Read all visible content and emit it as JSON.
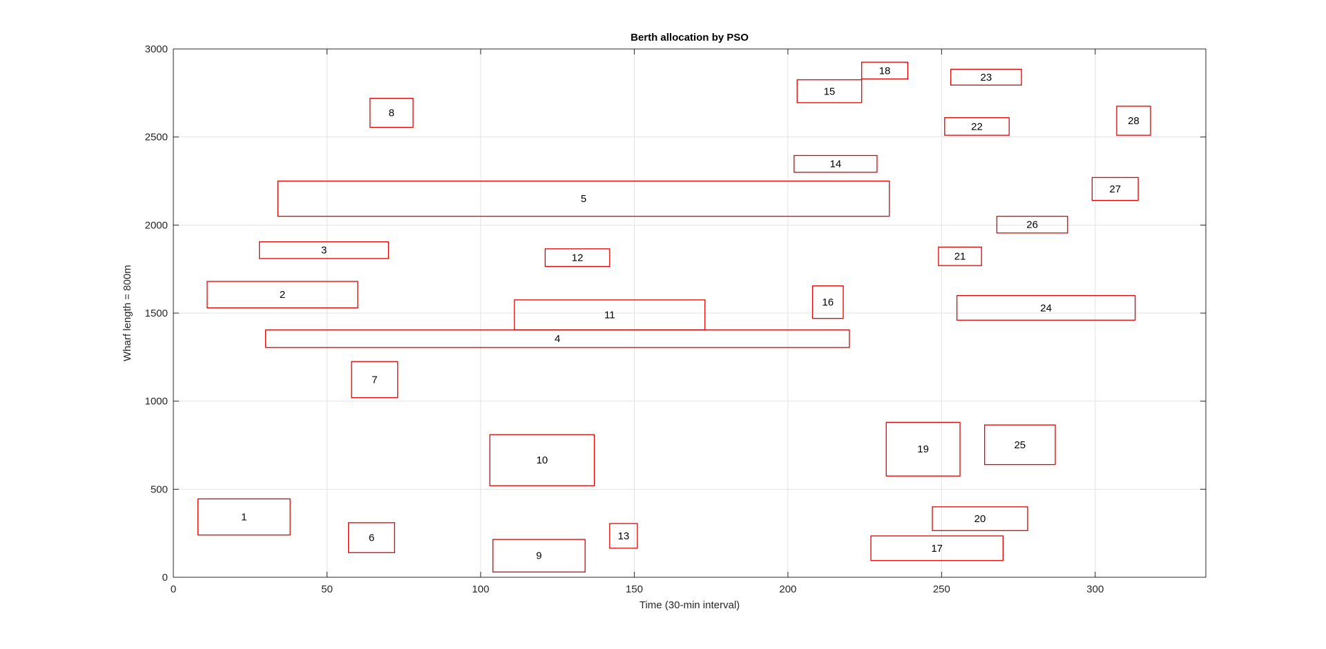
{
  "chart_data": {
    "type": "rectangle-chart",
    "title": "Berth allocation by PSO",
    "xlabel": "Time (30-min interval)",
    "ylabel": "Wharf length = 800m",
    "xlim": [
      0,
      336
    ],
    "ylim": [
      0,
      3000
    ],
    "xticks": [
      0,
      50,
      100,
      150,
      200,
      250,
      300
    ],
    "yticks": [
      0,
      500,
      1000,
      1500,
      2000,
      2500,
      3000
    ],
    "grid": true,
    "edge_color": "#e00000",
    "vessels": [
      {
        "id": "1",
        "x0": 8,
        "x1": 38,
        "y0": 240,
        "y1": 445
      },
      {
        "id": "2",
        "x0": 11,
        "x1": 60,
        "y0": 1530,
        "y1": 1680
      },
      {
        "id": "3",
        "x0": 28,
        "x1": 70,
        "y0": 1810,
        "y1": 1905
      },
      {
        "id": "4",
        "x0": 30,
        "x1": 220,
        "y0": 1305,
        "y1": 1405
      },
      {
        "id": "5",
        "x0": 34,
        "x1": 233,
        "y0": 2050,
        "y1": 2250
      },
      {
        "id": "6",
        "x0": 57,
        "x1": 72,
        "y0": 140,
        "y1": 310
      },
      {
        "id": "7",
        "x0": 58,
        "x1": 73,
        "y0": 1020,
        "y1": 1225
      },
      {
        "id": "8",
        "x0": 64,
        "x1": 78,
        "y0": 2555,
        "y1": 2720
      },
      {
        "id": "9",
        "x0": 104,
        "x1": 134,
        "y0": 30,
        "y1": 215
      },
      {
        "id": "10",
        "x0": 103,
        "x1": 137,
        "y0": 520,
        "y1": 810
      },
      {
        "id": "11",
        "x0": 111,
        "x1": 173,
        "y0": 1405,
        "y1": 1575
      },
      {
        "id": "12",
        "x0": 121,
        "x1": 142,
        "y0": 1765,
        "y1": 1865
      },
      {
        "id": "13",
        "x0": 142,
        "x1": 151,
        "y0": 165,
        "y1": 305
      },
      {
        "id": "14",
        "x0": 202,
        "x1": 229,
        "y0": 2300,
        "y1": 2395
      },
      {
        "id": "15",
        "x0": 203,
        "x1": 224,
        "y0": 2695,
        "y1": 2825
      },
      {
        "id": "16",
        "x0": 208,
        "x1": 218,
        "y0": 1470,
        "y1": 1655
      },
      {
        "id": "17",
        "x0": 227,
        "x1": 270,
        "y0": 95,
        "y1": 235
      },
      {
        "id": "18",
        "x0": 224,
        "x1": 239,
        "y0": 2830,
        "y1": 2925
      },
      {
        "id": "19",
        "x0": 232,
        "x1": 256,
        "y0": 575,
        "y1": 880
      },
      {
        "id": "20",
        "x0": 247,
        "x1": 278,
        "y0": 265,
        "y1": 400
      },
      {
        "id": "21",
        "x0": 249,
        "x1": 263,
        "y0": 1770,
        "y1": 1875
      },
      {
        "id": "22",
        "x0": 251,
        "x1": 272,
        "y0": 2510,
        "y1": 2610
      },
      {
        "id": "23",
        "x0": 253,
        "x1": 276,
        "y0": 2795,
        "y1": 2885
      },
      {
        "id": "24",
        "x0": 255,
        "x1": 313,
        "y0": 1460,
        "y1": 1600
      },
      {
        "id": "25",
        "x0": 264,
        "x1": 287,
        "y0": 640,
        "y1": 865
      },
      {
        "id": "26",
        "x0": 268,
        "x1": 291,
        "y0": 1955,
        "y1": 2050
      },
      {
        "id": "27",
        "x0": 299,
        "x1": 314,
        "y0": 2140,
        "y1": 2270
      },
      {
        "id": "28",
        "x0": 307,
        "x1": 318,
        "y0": 2510,
        "y1": 2675
      }
    ]
  }
}
